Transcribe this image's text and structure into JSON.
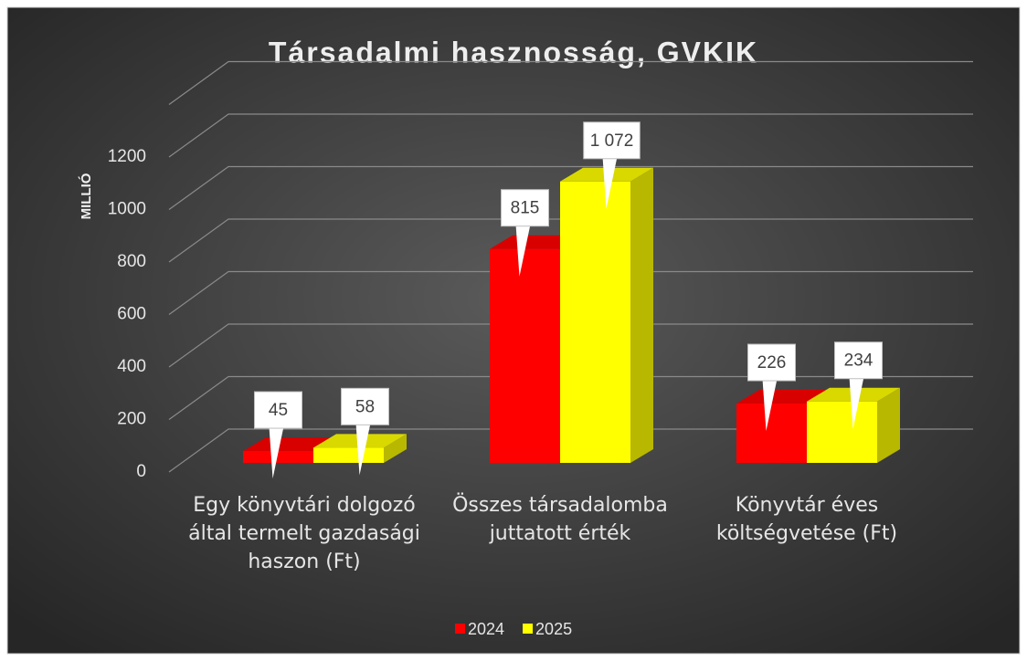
{
  "chart_data": {
    "type": "bar3d",
    "title": "Társadalmi hasznosság, GVKIK",
    "y_label": "MILLIÓ",
    "categories": [
      "Egy könyvtári dolgozó által termelt gazdasági haszon (Ft)",
      "Összes társadalomba juttatott érték",
      "Könyvtár éves költségvetése (Ft)"
    ],
    "series": [
      {
        "name": "2024",
        "color": "#ff0000",
        "values": [
          45,
          815,
          226
        ],
        "value_labels": [
          "45",
          "815",
          "226"
        ]
      },
      {
        "name": "2025",
        "color": "#ffff00",
        "values": [
          58,
          1072,
          234
        ],
        "value_labels": [
          "58",
          "1 072",
          "234"
        ]
      }
    ],
    "ylim": [
      0,
      1400
    ],
    "yticks": [
      0,
      200,
      400,
      600,
      800,
      1000,
      1200
    ],
    "grid": true,
    "legend": "bottom"
  }
}
